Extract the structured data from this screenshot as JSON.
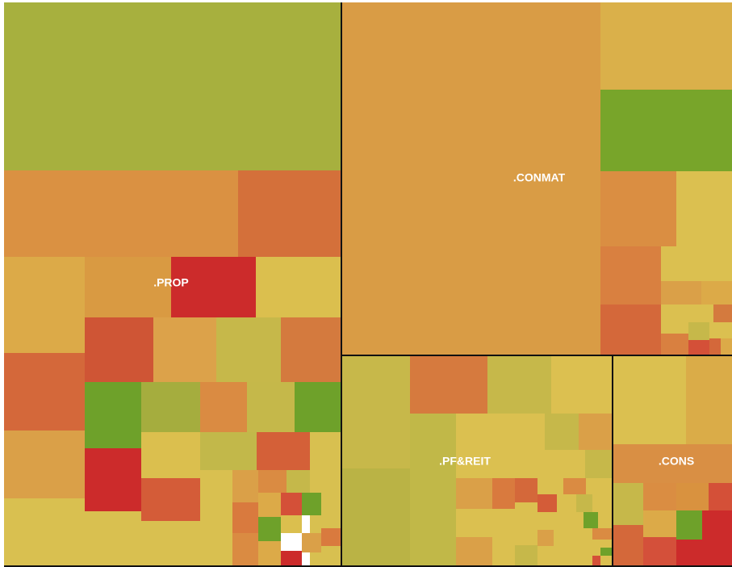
{
  "sectors": [
    {
      "label": ".PROP"
    },
    {
      "label": ".CONMAT"
    },
    {
      "label": ".PF&REIT"
    },
    {
      "label": ".CONS"
    }
  ]
}
